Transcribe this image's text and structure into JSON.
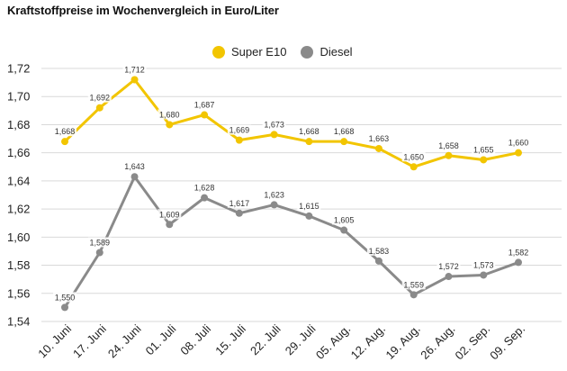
{
  "title": "Kraftstoffpreise im Wochenvergleich in Euro/Liter",
  "legend": {
    "super": "Super E10",
    "diesel": "Diesel"
  },
  "colors": {
    "super": "#f2c500",
    "diesel": "#8a8a8a",
    "grid": "#d9d9d9"
  },
  "chart_data": {
    "type": "line",
    "title": "Kraftstoffpreise im Wochenvergleich in Euro/Liter",
    "xlabel": "",
    "ylabel": "",
    "categories": [
      "10. Juni",
      "17. Juni",
      "24. Juni",
      "01. Juli",
      "08. Juli",
      "15. Juli",
      "22. Juli",
      "29. Juli",
      "05. Aug.",
      "12. Aug.",
      "19. Aug.",
      "26. Aug.",
      "02. Sep.",
      "09. Sep."
    ],
    "series": [
      {
        "name": "Super E10",
        "values": [
          1.668,
          1.692,
          1.712,
          1.68,
          1.687,
          1.669,
          1.673,
          1.668,
          1.668,
          1.663,
          1.65,
          1.658,
          1.655,
          1.66
        ],
        "labels": [
          "1,668",
          "1,692",
          "1,712",
          "1,680",
          "1,687",
          "1,669",
          "1,673",
          "1,668",
          "1,668",
          "1,663",
          "1,650",
          "1,658",
          "1,655",
          "1,660"
        ]
      },
      {
        "name": "Diesel",
        "values": [
          1.55,
          1.589,
          1.643,
          1.609,
          1.628,
          1.617,
          1.623,
          1.615,
          1.605,
          1.583,
          1.559,
          1.572,
          1.573,
          1.582
        ],
        "labels": [
          "1,550",
          "1,589",
          "1,643",
          "1,609",
          "1,628",
          "1,617",
          "1,623",
          "1,615",
          "1,605",
          "1,583",
          "1,559",
          "1,572",
          "1,573",
          "1,582"
        ]
      }
    ],
    "yticks": [
      1.54,
      1.56,
      1.58,
      1.6,
      1.62,
      1.64,
      1.66,
      1.68,
      1.7,
      1.72
    ],
    "ytick_labels": [
      "1,54",
      "1,56",
      "1,58",
      "1,60",
      "1,62",
      "1,64",
      "1,66",
      "1,68",
      "1,70",
      "1,72"
    ],
    "ylim": [
      1.54,
      1.72
    ],
    "grid": true,
    "legend_position": "top-center"
  }
}
